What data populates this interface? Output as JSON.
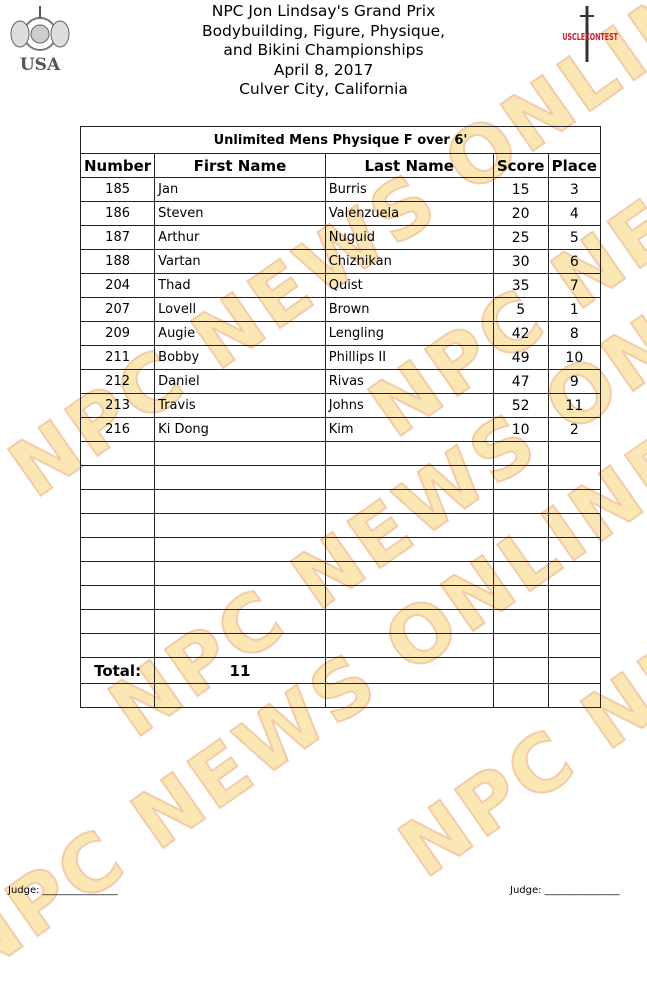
{
  "header": {
    "lines": [
      "NPC Jon Lindsay's Grand Prix",
      "Bodybuilding, Figure, Physique,",
      "and Bikini Championships",
      "April 8, 2017",
      "Culver City, California"
    ]
  },
  "logos": {
    "left": "USA",
    "right": "MUSCLECONTEST"
  },
  "watermark": "NPC NEWS ONLINE",
  "table": {
    "title": "Unlimited Mens Physique F over 6'",
    "columns": [
      "Number",
      "First Name",
      "Last Name",
      "Score",
      "Place"
    ],
    "rows": [
      [
        "185",
        "Jan",
        "Burris",
        "15",
        "3"
      ],
      [
        "186",
        "Steven",
        "Valenzuela",
        "20",
        "4"
      ],
      [
        "187",
        "Arthur",
        "Nuguid",
        "25",
        "5"
      ],
      [
        "188",
        "Vartan",
        "Chizhikan",
        "30",
        "6"
      ],
      [
        "204",
        "Thad",
        "Quist",
        "35",
        "7"
      ],
      [
        "207",
        "Lovell",
        "Brown",
        "5",
        "1"
      ],
      [
        "209",
        "Augie",
        "Lengling",
        "42",
        "8"
      ],
      [
        "211",
        "Bobby",
        "Phillips II",
        "49",
        "10"
      ],
      [
        "212",
        "Daniel",
        "Rivas",
        "47",
        "9"
      ],
      [
        "213",
        "Travis",
        "Johns",
        "52",
        "11"
      ],
      [
        "216",
        "Ki Dong",
        "Kim",
        "10",
        "2"
      ]
    ],
    "blank_rows": 9,
    "total_label": "Total:",
    "total_value": "11"
  },
  "footer": {
    "judge_left": "Judge: _______________",
    "judge_right": "Judge: _______________"
  }
}
